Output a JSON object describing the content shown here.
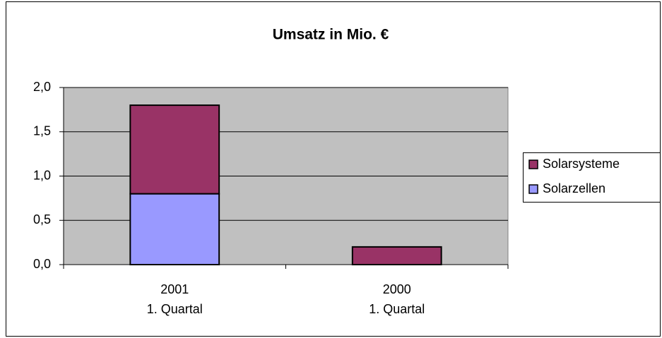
{
  "chart_data": {
    "type": "bar",
    "stacked": true,
    "title": "Umsatz in Mio. €",
    "categories": [
      [
        "2001",
        "1. Quartal"
      ],
      [
        "2000",
        "1. Quartal"
      ]
    ],
    "series": [
      {
        "name": "Solarzellen",
        "color": "#9999ff",
        "values": [
          0.8,
          0
        ]
      },
      {
        "name": "Solarsysteme",
        "color": "#993366",
        "values": [
          1.0,
          0.2
        ]
      }
    ],
    "ylim": [
      0,
      2
    ],
    "yticks": [
      {
        "value": 0,
        "label": "0,0"
      },
      {
        "value": 0.5,
        "label": "0,5"
      },
      {
        "value": 1,
        "label": "1,0"
      },
      {
        "value": 1.5,
        "label": "1,5"
      },
      {
        "value": 2,
        "label": "2,0"
      }
    ],
    "grid": true,
    "legend": "right"
  }
}
